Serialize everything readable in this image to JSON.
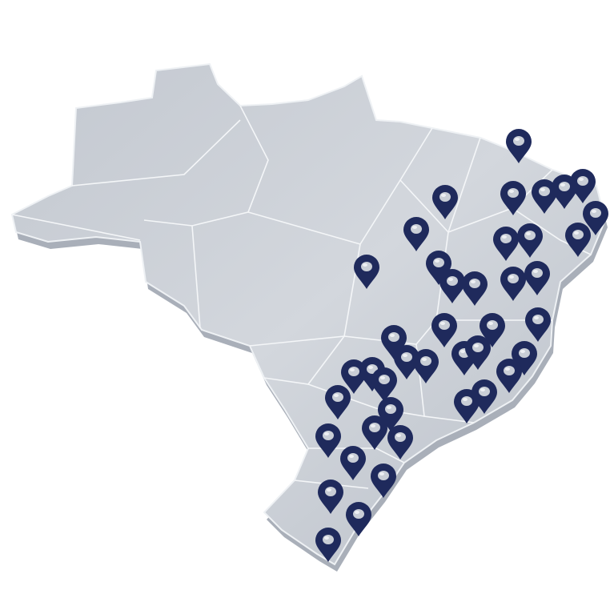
{
  "map": {
    "region": "Brazil",
    "land_color": "#c9ced6",
    "land_edge_color": "#a9afb9",
    "border_color": "#f4f6f8",
    "marker_color": "#1f2a5c",
    "marker_icon": "map-pin-icon"
  }
}
